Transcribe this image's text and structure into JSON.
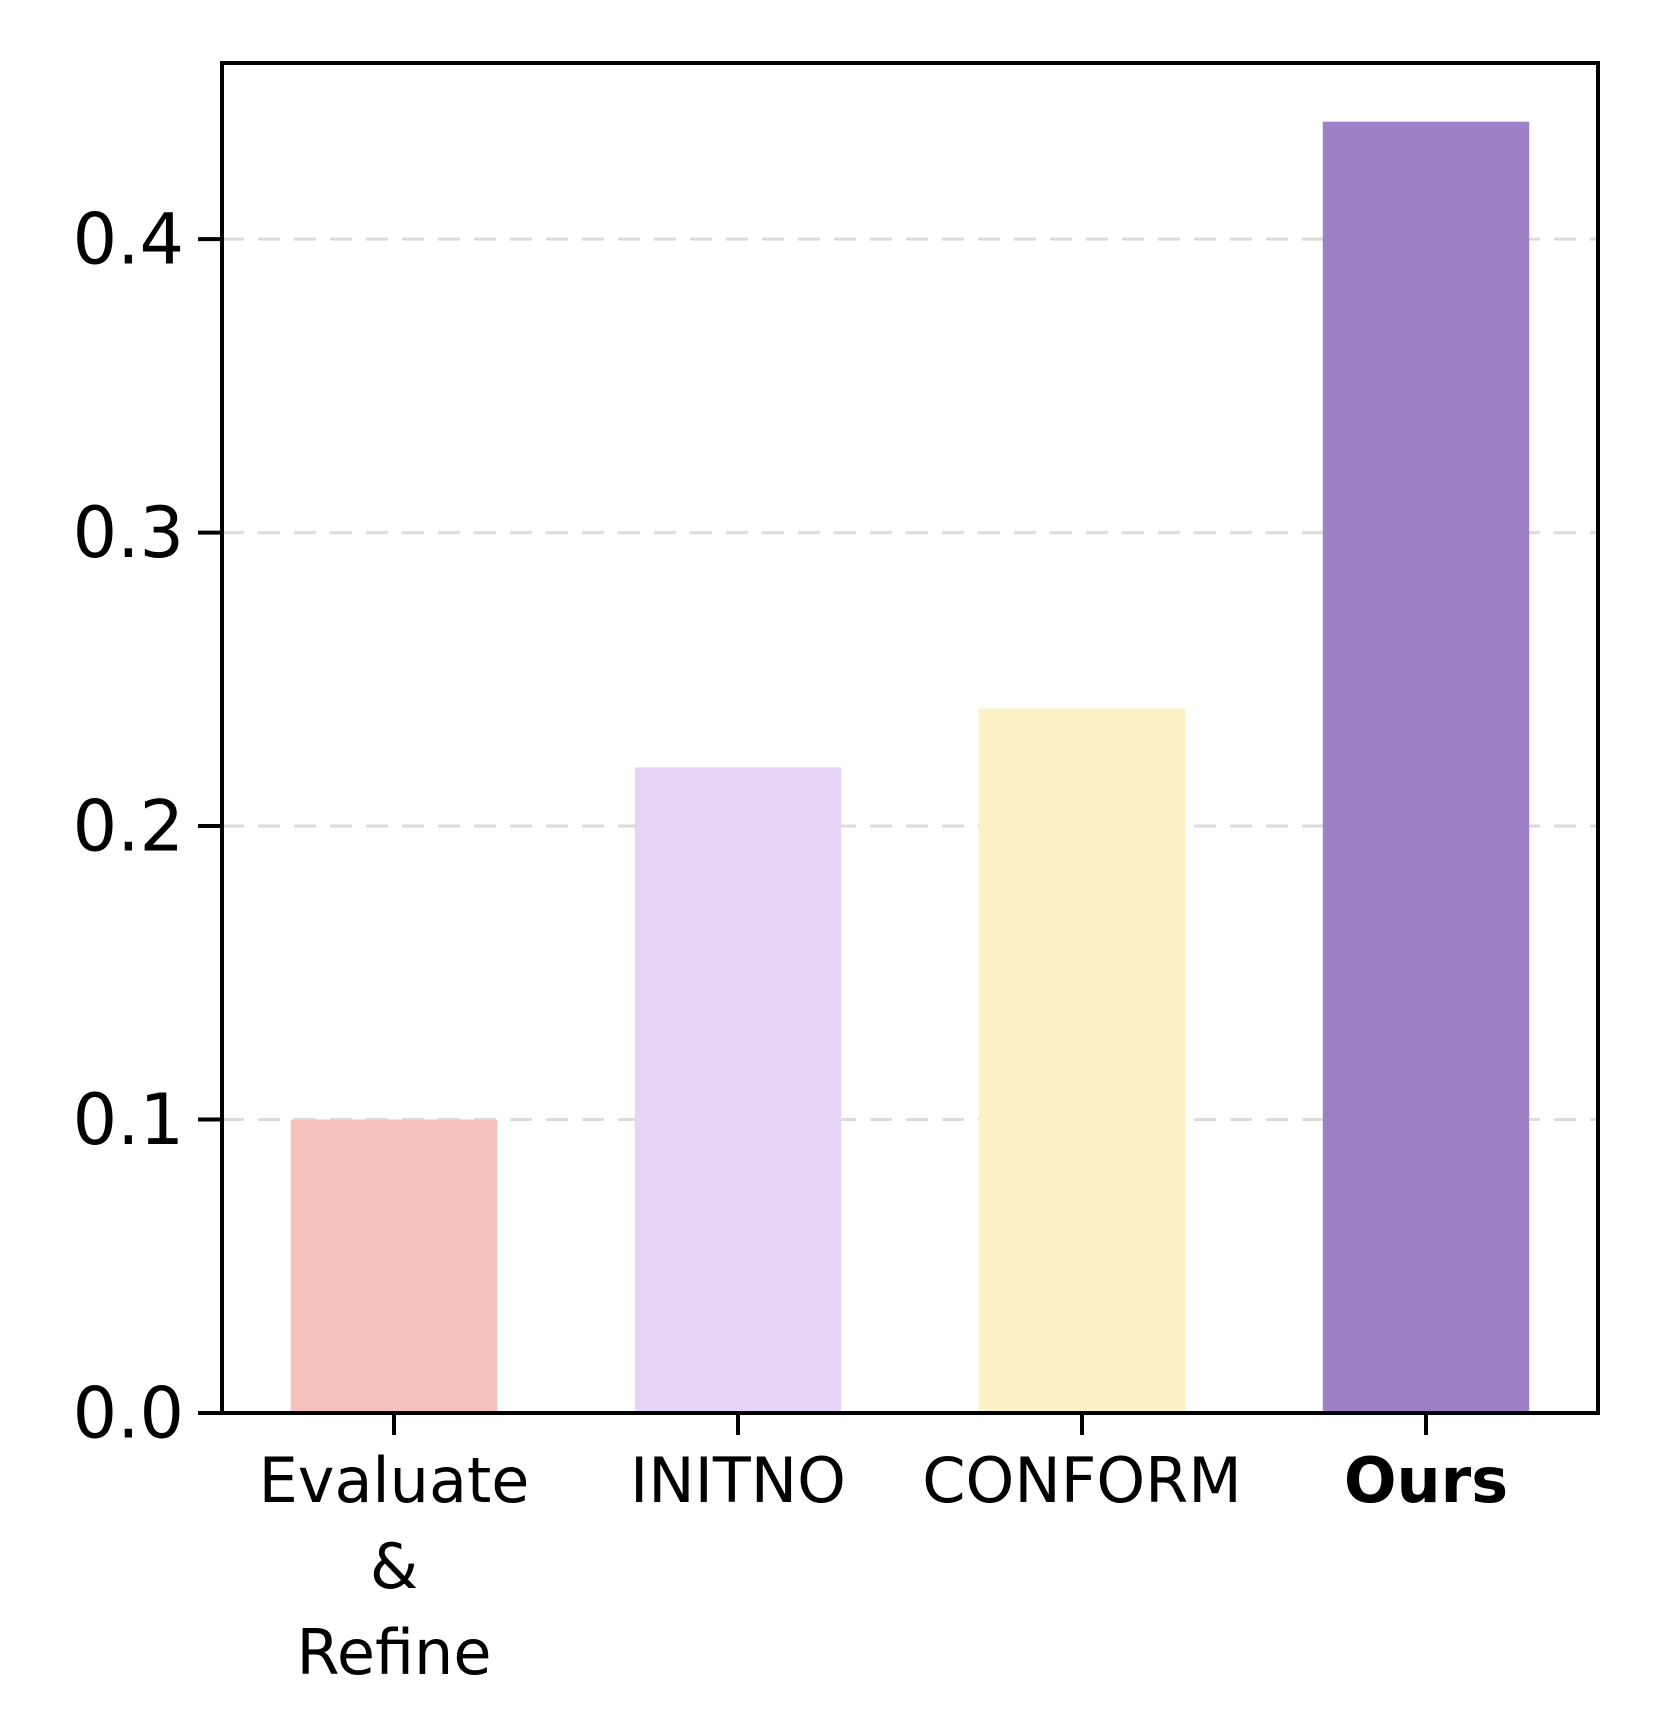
{
  "figure": {
    "background_color": "#ffffff"
  },
  "chart_data": {
    "type": "bar",
    "title": "",
    "xlabel": "",
    "ylabel": "",
    "categories": [
      "Evaluate & Refine",
      "INITNO",
      "CONFORM",
      "Ours"
    ],
    "values": [
      0.1,
      0.22,
      0.24,
      0.44
    ],
    "bar_colors": [
      "#f6c1bc",
      "#e5d4f5",
      "#fbf0c6",
      "#9d80c6"
    ],
    "xticklabels": [
      {
        "lines": [
          "Evaluate",
          "&",
          "Refine"
        ],
        "bold": false
      },
      {
        "lines": [
          "INITNO"
        ],
        "bold": false
      },
      {
        "lines": [
          "CONFORM"
        ],
        "bold": false
      },
      {
        "lines": [
          "Ours"
        ],
        "bold": true
      }
    ],
    "yticks": [
      0.0,
      0.1,
      0.2,
      0.3,
      0.4
    ],
    "ytick_labels": [
      "0.0",
      "0.1",
      "0.2",
      "0.3",
      "0.4"
    ],
    "ylim": [
      0,
      0.46
    ],
    "grid": {
      "axis": "y",
      "style": "dashed",
      "color": "#dcdcdc"
    },
    "legend": "none",
    "bar_width_fraction": 0.6,
    "spine_color": "#000000",
    "emphasized_category": "Ours"
  }
}
